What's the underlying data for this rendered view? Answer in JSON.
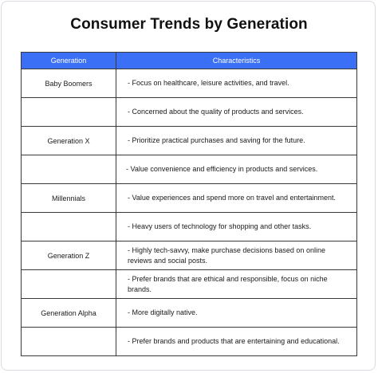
{
  "title": "Consumer Trends by Generation",
  "table": {
    "headers": [
      "Generation",
      "Characteristics"
    ],
    "rows": [
      {
        "generation": "Baby Boomers",
        "characteristic": "- Focus on healthcare, leisure activities, and travel."
      },
      {
        "generation": "",
        "characteristic": "- Concerned about the quality of products and services."
      },
      {
        "generation": "Generation X",
        "characteristic": "- Prioritize practical purchases and saving for the future."
      },
      {
        "generation": "",
        "characteristic": "- Value convenience and efficiency in products and services."
      },
      {
        "generation": "Millennials",
        "characteristic": "- Value experiences and spend more on travel and entertainment."
      },
      {
        "generation": "",
        "characteristic": "- Heavy users of technology for shopping and other tasks."
      },
      {
        "generation": "Generation Z",
        "characteristic": "- Highly tech-savvy, make purchase decisions based on online reviews and social posts."
      },
      {
        "generation": "",
        "characteristic": "- Prefer brands that are ethical and responsible, focus on niche brands."
      },
      {
        "generation": "Generation Alpha",
        "characteristic": "- More digitally native."
      },
      {
        "generation": "",
        "characteristic": "- Prefer brands and products that are entertaining and educational."
      }
    ]
  }
}
